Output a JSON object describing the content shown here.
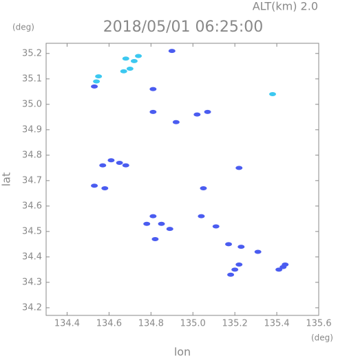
{
  "chart_data": {
    "type": "scatter",
    "title": "2018/05/01 06:25:00",
    "subtitle": "ALT(km) 2.0",
    "y_unit": "(deg)",
    "x_unit": "(deg)",
    "x_label": "lon",
    "y_label": "lat",
    "xlim": [
      134.3,
      135.6
    ],
    "ylim": [
      34.17,
      35.24
    ],
    "xticks": [
      134.4,
      134.6,
      134.8,
      {
        "value": 135,
        "label": "135.0"
      },
      135.2,
      135.4,
      135.6
    ],
    "yticks": [
      34.2,
      34.3,
      34.4,
      34.5,
      34.6,
      34.7,
      34.8,
      34.9,
      {
        "value": 35,
        "label": "35.0"
      },
      35.1,
      35.2
    ],
    "series": [
      {
        "color": "#4a5cf0",
        "x": [
          134.53,
          134.9,
          134.81,
          134.81,
          135.02,
          135.07,
          134.92,
          134.57,
          134.61,
          134.65,
          134.68,
          135.22,
          135.05,
          134.53,
          134.58,
          134.81,
          135.04,
          134.85,
          134.89,
          134.78,
          135.11,
          134.82,
          135.17,
          135.23,
          135.31,
          135.22,
          135.2,
          135.18,
          135.43,
          135.41,
          135.44
        ],
        "values": [
          35.07,
          35.21,
          35.06,
          34.97,
          34.96,
          34.97,
          34.93,
          34.76,
          34.78,
          34.77,
          34.76,
          34.75,
          34.67,
          34.68,
          34.67,
          34.56,
          34.56,
          34.53,
          34.51,
          34.53,
          34.52,
          34.47,
          34.45,
          34.44,
          34.42,
          34.37,
          34.35,
          34.33,
          34.36,
          34.35,
          34.37
        ]
      },
      {
        "color": "#3cc8f0",
        "x": [
          134.54,
          134.55,
          134.67,
          134.7,
          134.72,
          134.68,
          134.74,
          135.38
        ],
        "values": [
          35.09,
          35.11,
          35.13,
          35.14,
          35.17,
          35.18,
          35.19,
          35.04
        ]
      }
    ]
  }
}
